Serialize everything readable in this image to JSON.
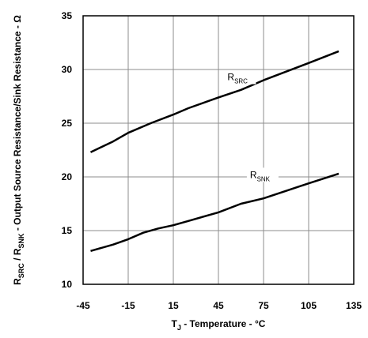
{
  "chart_data": {
    "type": "line",
    "xlabel": {
      "main": "T",
      "sub": "J",
      "rest": " - Temperature - °C"
    },
    "ylabel": {
      "p1": "R",
      "s1": "SRC",
      "p2": " / R",
      "s2": "SNK",
      "rest": " - Output Source Resistance/Sink Resistance - Ω"
    },
    "xlim": [
      -45,
      135
    ],
    "ylim": [
      10,
      35
    ],
    "xticks": [
      "-45",
      "-15",
      "15",
      "45",
      "75",
      "105",
      "135"
    ],
    "yticks": [
      "35",
      "30",
      "25",
      "20",
      "15",
      "10"
    ],
    "grid": true,
    "series": [
      {
        "name": "SRC",
        "prefix": "R",
        "points": [
          [
            -40,
            22.3
          ],
          [
            -25,
            23.3
          ],
          [
            -15,
            24.1
          ],
          [
            0,
            25.0
          ],
          [
            15,
            25.8
          ],
          [
            25,
            26.4
          ],
          [
            45,
            27.4
          ],
          [
            60,
            28.1
          ],
          [
            75,
            29.0
          ],
          [
            90,
            29.8
          ],
          [
            105,
            30.6
          ],
          [
            125,
            31.7
          ]
        ]
      },
      {
        "name": "SNK",
        "prefix": "R",
        "points": [
          [
            -40,
            13.1
          ],
          [
            -25,
            13.7
          ],
          [
            -15,
            14.2
          ],
          [
            -5,
            14.8
          ],
          [
            5,
            15.2
          ],
          [
            15,
            15.5
          ],
          [
            25,
            15.9
          ],
          [
            45,
            16.7
          ],
          [
            60,
            17.5
          ],
          [
            75,
            18.0
          ],
          [
            90,
            18.7
          ],
          [
            105,
            19.4
          ],
          [
            125,
            20.3
          ]
        ]
      }
    ]
  }
}
